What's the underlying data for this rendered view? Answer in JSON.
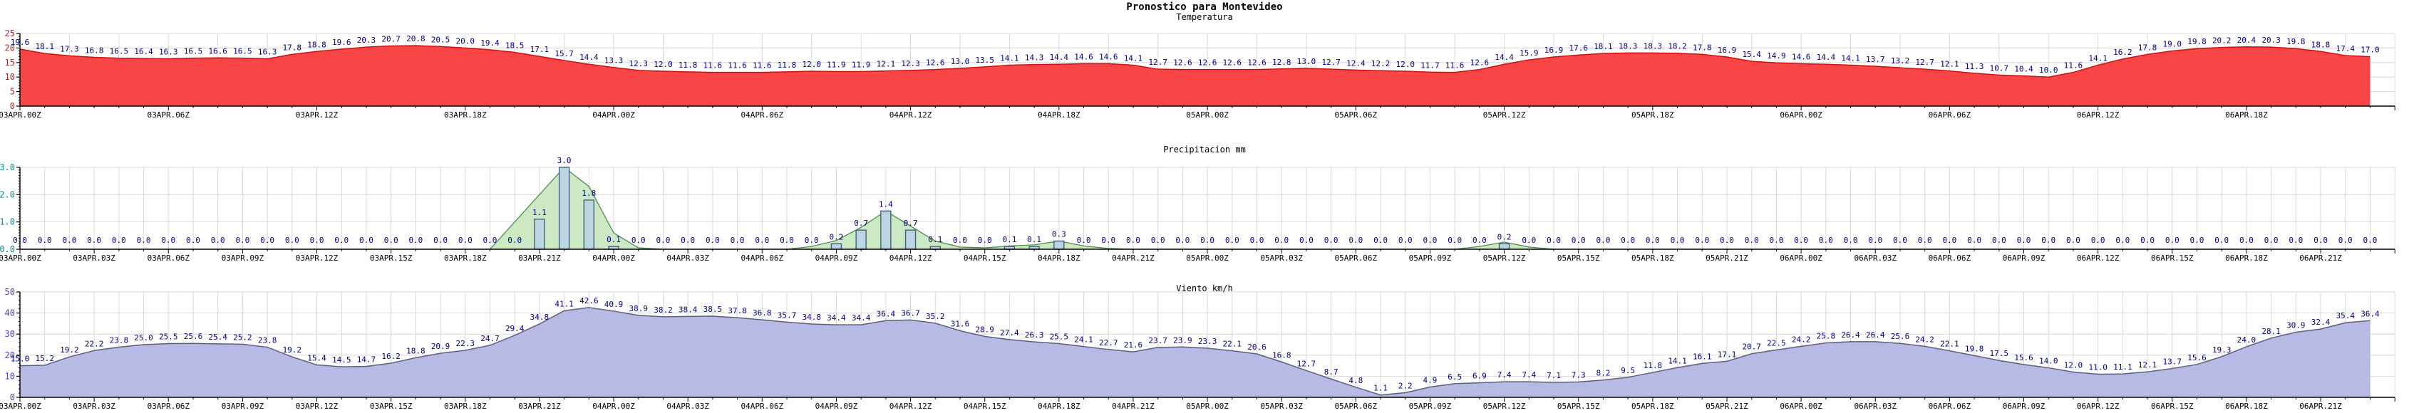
{
  "header": {
    "title": "Pronostico para Montevideo"
  },
  "style": {
    "background": "#ffffff",
    "grid_color": "#d8d8d8",
    "axis_color": "#000000",
    "value_label_color": "#000080"
  },
  "chart_data": [
    {
      "type": "area",
      "title": "Temperatura",
      "x_start_label": "03APR.00Z",
      "x_tick_step_hours": 6,
      "x_tick_labels": [
        "03APR.00Z",
        "03APR.06Z",
        "03APR.12Z",
        "03APR.18Z",
        "04APR.00Z",
        "04APR.06Z",
        "04APR.12Z",
        "04APR.18Z",
        "05APR.00Z",
        "05APR.06Z",
        "05APR.12Z",
        "05APR.18Z",
        "06APR.00Z",
        "06APR.06Z",
        "06APR.12Z",
        "06APR.18Z"
      ],
      "grid_step_hours": 2,
      "ylim": [
        0,
        25
      ],
      "y_tick_labels": [
        "0",
        "5",
        "10",
        "15",
        "20",
        "25"
      ],
      "y_minor_step": 1,
      "values": [
        19.6,
        18.1,
        17.3,
        16.8,
        16.5,
        16.4,
        16.3,
        16.5,
        16.6,
        16.5,
        16.3,
        17.8,
        18.8,
        19.6,
        20.3,
        20.7,
        20.8,
        20.5,
        20.0,
        19.4,
        18.5,
        17.1,
        15.7,
        14.4,
        13.3,
        12.3,
        12.0,
        11.8,
        11.6,
        11.6,
        11.6,
        11.8,
        12.0,
        11.9,
        11.9,
        12.1,
        12.3,
        12.6,
        13.0,
        13.5,
        14.1,
        14.3,
        14.4,
        14.6,
        14.6,
        14.1,
        12.7,
        12.6,
        12.6,
        12.6,
        12.6,
        12.8,
        13.0,
        12.7,
        12.4,
        12.2,
        12.0,
        11.7,
        11.6,
        12.6,
        14.4,
        15.9,
        16.9,
        17.6,
        18.1,
        18.3,
        18.3,
        18.2,
        17.8,
        16.9,
        15.4,
        14.9,
        14.6,
        14.4,
        14.1,
        13.7,
        13.2,
        12.7,
        12.1,
        11.3,
        10.7,
        10.4,
        10.0,
        11.6,
        14.1,
        16.2,
        17.8,
        19.0,
        19.8,
        20.2,
        20.4,
        20.3,
        19.8,
        18.8,
        17.4,
        17.0
      ],
      "colors": {
        "fill": "#f94545",
        "line": "#cc1111",
        "ylabel": "#c02020"
      }
    },
    {
      "type": "bar",
      "title": "Precipitacion mm",
      "x_start_label": "03APR.00Z",
      "x_tick_step_hours": 3,
      "x_tick_labels": [
        "03APR.00Z",
        "03APR.03Z",
        "03APR.06Z",
        "03APR.09Z",
        "03APR.12Z",
        "03APR.15Z",
        "03APR.18Z",
        "03APR.21Z",
        "04APR.00Z",
        "04APR.03Z",
        "04APR.06Z",
        "04APR.09Z",
        "04APR.12Z",
        "04APR.15Z",
        "04APR.18Z",
        "04APR.21Z",
        "05APR.00Z",
        "05APR.03Z",
        "05APR.06Z",
        "05APR.09Z",
        "05APR.12Z",
        "05APR.15Z",
        "05APR.18Z",
        "05APR.21Z",
        "06APR.00Z",
        "06APR.03Z",
        "06APR.06Z",
        "06APR.09Z",
        "06APR.12Z",
        "06APR.15Z",
        "06APR.18Z",
        "06APR.21Z"
      ],
      "grid_step_hours": 1,
      "ylim": [
        0,
        3
      ],
      "y_tick_labels": [
        "0.0",
        "1.0",
        "2.0",
        "3.0"
      ],
      "y_minor_step": 0.1,
      "values": [
        0.0,
        0.0,
        0.0,
        0.0,
        0.0,
        0.0,
        0.0,
        0.0,
        0.0,
        0.0,
        0.0,
        0.0,
        0.0,
        0.0,
        0.0,
        0.0,
        0.0,
        0.0,
        0.0,
        0.0,
        0.0,
        1.1,
        3.0,
        1.8,
        0.1,
        0.0,
        0.0,
        0.0,
        0.0,
        0.0,
        0.0,
        0.0,
        0.0,
        0.2,
        0.7,
        1.4,
        0.7,
        0.1,
        0.0,
        0.0,
        0.1,
        0.1,
        0.3,
        0.0,
        0.0,
        0.0,
        0.0,
        0.0,
        0.0,
        0.0,
        0.0,
        0.0,
        0.0,
        0.0,
        0.0,
        0.0,
        0.0,
        0.0,
        0.0,
        0.0,
        0.2,
        0.0,
        0.0,
        0.0,
        0.0,
        0.0,
        0.0,
        0.0,
        0.0,
        0.0,
        0.0,
        0.0,
        0.0,
        0.0,
        0.0,
        0.0,
        0.0,
        0.0,
        0.0,
        0.0,
        0.0,
        0.0,
        0.0,
        0.0,
        0.0,
        0.0,
        0.0,
        0.0,
        0.0,
        0.0,
        0.0,
        0.0,
        0.0,
        0.0,
        0.0,
        0.0
      ],
      "smooth_series": [
        [
          19,
          0
        ],
        [
          20,
          1.0
        ],
        [
          21,
          2.0
        ],
        [
          22,
          3.0
        ],
        [
          23,
          2.3
        ],
        [
          24,
          0.6
        ],
        [
          25,
          0.05
        ],
        [
          26,
          0
        ],
        [
          31,
          0
        ],
        [
          32,
          0.1
        ],
        [
          33,
          0.32
        ],
        [
          34,
          0.8
        ],
        [
          35,
          1.4
        ],
        [
          36,
          0.85
        ],
        [
          37,
          0.3
        ],
        [
          38,
          0.08
        ],
        [
          39,
          0.05
        ],
        [
          40,
          0.12
        ],
        [
          41,
          0.16
        ],
        [
          42,
          0.3
        ],
        [
          43,
          0.12
        ],
        [
          44,
          0.03
        ],
        [
          45,
          0
        ],
        [
          58,
          0
        ],
        [
          59,
          0.1
        ],
        [
          60,
          0.26
        ],
        [
          61,
          0.08
        ],
        [
          62,
          0
        ]
      ],
      "colors": {
        "bar_fill": "#b9d3e6",
        "bar_line": "#46607a",
        "area_fill": "#cde9c4",
        "area_line": "#4e8c50",
        "ylabel": "#009090"
      }
    },
    {
      "type": "area",
      "title": "Viento km/h",
      "x_start_label": "03APR.00Z",
      "x_tick_step_hours": 3,
      "x_tick_labels": [
        "03APR.00Z",
        "03APR.03Z",
        "03APR.06Z",
        "03APR.09Z",
        "03APR.12Z",
        "03APR.15Z",
        "03APR.18Z",
        "03APR.21Z",
        "04APR.00Z",
        "04APR.03Z",
        "04APR.06Z",
        "04APR.09Z",
        "04APR.12Z",
        "04APR.15Z",
        "04APR.18Z",
        "04APR.21Z",
        "05APR.00Z",
        "05APR.03Z",
        "05APR.06Z",
        "05APR.09Z",
        "05APR.12Z",
        "05APR.15Z",
        "05APR.18Z",
        "05APR.21Z",
        "06APR.00Z",
        "06APR.03Z",
        "06APR.06Z",
        "06APR.09Z",
        "06APR.12Z",
        "06APR.15Z",
        "06APR.18Z",
        "06APR.21Z"
      ],
      "grid_step_hours": 1,
      "ylim": [
        0,
        50
      ],
      "y_tick_labels": [
        "0",
        "10",
        "20",
        "30",
        "40",
        "50"
      ],
      "y_minor_step": 2,
      "values": [
        15.0,
        15.2,
        19.2,
        22.2,
        23.8,
        25.0,
        25.5,
        25.6,
        25.4,
        25.2,
        23.8,
        19.2,
        15.4,
        14.5,
        14.7,
        16.2,
        18.8,
        20.9,
        22.3,
        24.7,
        29.4,
        34.8,
        41.1,
        42.6,
        40.9,
        38.9,
        38.2,
        38.4,
        38.5,
        37.8,
        36.8,
        35.7,
        34.8,
        34.4,
        34.4,
        36.4,
        36.7,
        35.2,
        31.6,
        28.9,
        27.4,
        26.3,
        25.5,
        24.1,
        22.7,
        21.6,
        23.7,
        23.9,
        23.3,
        22.1,
        20.6,
        16.8,
        12.7,
        8.7,
        4.8,
        1.1,
        2.2,
        4.9,
        6.5,
        6.9,
        7.4,
        7.4,
        7.1,
        7.3,
        8.2,
        9.5,
        11.8,
        14.1,
        16.1,
        17.1,
        20.7,
        22.5,
        24.2,
        25.8,
        26.4,
        26.4,
        25.6,
        24.2,
        22.1,
        19.8,
        17.5,
        15.6,
        14.0,
        12.0,
        11.0,
        11.1,
        12.1,
        13.7,
        15.6,
        19.3,
        24.0,
        28.1,
        30.9,
        32.4,
        35.4,
        36.4
      ],
      "colors": {
        "fill": "#b7bae5",
        "line": "#5e5e7c",
        "ylabel": "#4040cc"
      }
    }
  ]
}
